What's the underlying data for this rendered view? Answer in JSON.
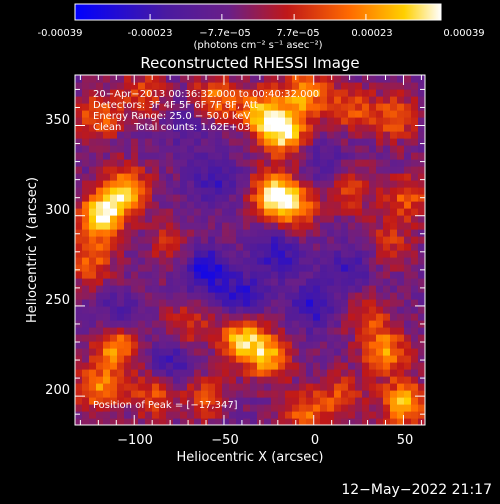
{
  "colorbar": {
    "tick_labels": [
      "-0.00039",
      "-0.00023",
      "−7.7e−05",
      "7.7e−05",
      "0.00023",
      "0.00039"
    ],
    "tick_values": [
      -0.00039,
      -0.00023,
      -7.7e-05,
      7.7e-05,
      0.00023,
      0.00039
    ],
    "range": [
      -0.00039,
      0.00039
    ],
    "units_label": "(photons cm⁻² s⁻¹ asec⁻²)"
  },
  "footer": {
    "date": "12−May−2022 21:17"
  },
  "chart_data": {
    "type": "heatmap",
    "title": "Reconstructed RHESSI Image",
    "xlabel": "Heliocentric X (arcsec)",
    "ylabel": "Heliocentric Y (arcsec)",
    "xlim": [
      -133,
      62
    ],
    "ylim": [
      184,
      378
    ],
    "x_ticks": [
      -100,
      -50,
      0,
      50
    ],
    "x_tick_labels": [
      "−100",
      "−50",
      "0",
      "50"
    ],
    "y_ticks": [
      200,
      250,
      300,
      350
    ],
    "y_tick_labels": [
      "200",
      "250",
      "300",
      "350"
    ],
    "annotations": [
      "20−Apr−2013 00:36:32.000 to 00:40:32.000",
      "Detectors: 3F 4F 5F 6F 7F 8F, Att",
      "Energy Range: 25.0 − 50.0 keV",
      "Clean    Total counts: 1.62E+03"
    ],
    "peak_label": "Position of Peak = [−17,347]",
    "peak_position": [
      -17,
      347
    ],
    "grid": false,
    "colors": {
      "colormap": "rainbow-like: blue → purple → red → orange → yellow → white"
    },
    "hot_spots": [
      {
        "x": -120,
        "y": 355,
        "v": 0.55
      },
      {
        "x": -95,
        "y": 368,
        "v": 0.45
      },
      {
        "x": -118,
        "y": 300,
        "v": 1.0
      },
      {
        "x": -105,
        "y": 315,
        "v": 0.8
      },
      {
        "x": -125,
        "y": 275,
        "v": 0.55
      },
      {
        "x": -80,
        "y": 285,
        "v": 0.35
      },
      {
        "x": -55,
        "y": 365,
        "v": 0.6
      },
      {
        "x": -30,
        "y": 358,
        "v": 0.7
      },
      {
        "x": -17,
        "y": 347,
        "v": 1.0
      },
      {
        "x": -5,
        "y": 368,
        "v": 0.7
      },
      {
        "x": 20,
        "y": 360,
        "v": 0.5
      },
      {
        "x": 45,
        "y": 355,
        "v": 0.55
      },
      {
        "x": 52,
        "y": 310,
        "v": 0.5
      },
      {
        "x": 42,
        "y": 285,
        "v": 0.35
      },
      {
        "x": -22,
        "y": 312,
        "v": 0.95
      },
      {
        "x": -10,
        "y": 305,
        "v": 0.6
      },
      {
        "x": 20,
        "y": 315,
        "v": 0.45
      },
      {
        "x": -70,
        "y": 240,
        "v": 0.4
      },
      {
        "x": -110,
        "y": 228,
        "v": 0.75
      },
      {
        "x": -120,
        "y": 205,
        "v": 0.65
      },
      {
        "x": -90,
        "y": 200,
        "v": 0.5
      },
      {
        "x": -40,
        "y": 232,
        "v": 0.85
      },
      {
        "x": -25,
        "y": 222,
        "v": 0.7
      },
      {
        "x": -5,
        "y": 190,
        "v": 0.55
      },
      {
        "x": 15,
        "y": 200,
        "v": 0.45
      },
      {
        "x": 40,
        "y": 225,
        "v": 0.7
      },
      {
        "x": 50,
        "y": 196,
        "v": 0.8
      },
      {
        "x": 30,
        "y": 245,
        "v": 0.4
      },
      {
        "x": -60,
        "y": 200,
        "v": 0.45
      }
    ],
    "cold_spots": [
      {
        "x": -60,
        "y": 270,
        "v": -0.6
      },
      {
        "x": -40,
        "y": 255,
        "v": -0.5
      },
      {
        "x": -20,
        "y": 280,
        "v": -0.45
      },
      {
        "x": -55,
        "y": 320,
        "v": -0.4
      },
      {
        "x": 0,
        "y": 250,
        "v": -0.45
      },
      {
        "x": -80,
        "y": 220,
        "v": -0.4
      },
      {
        "x": 20,
        "y": 270,
        "v": -0.35
      },
      {
        "x": -110,
        "y": 245,
        "v": -0.3
      },
      {
        "x": 5,
        "y": 330,
        "v": -0.3
      },
      {
        "x": -70,
        "y": 350,
        "v": -0.25
      }
    ]
  }
}
